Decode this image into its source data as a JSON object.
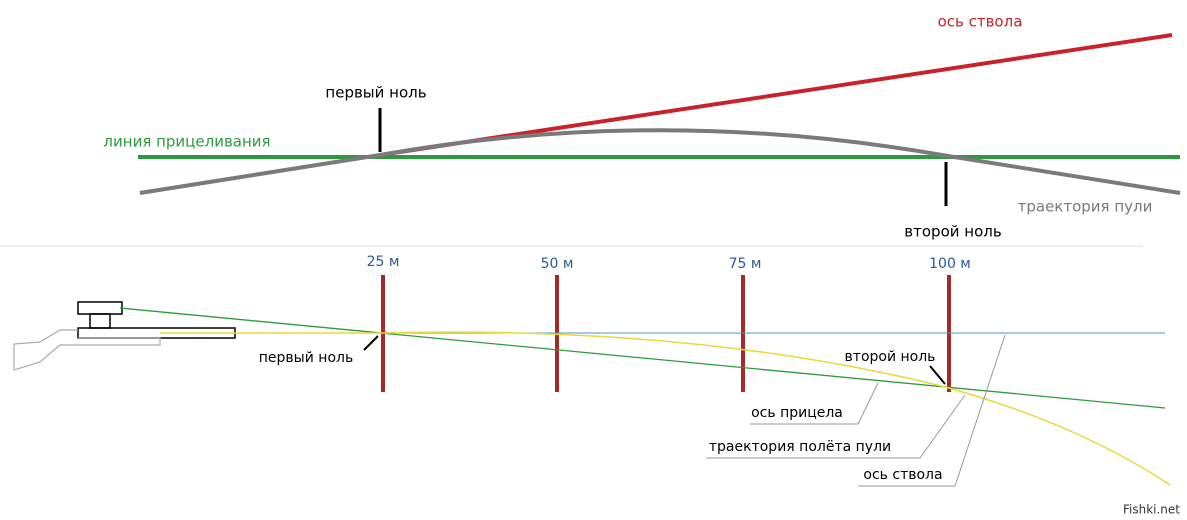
{
  "top": {
    "barrel_axis": "ось ствола",
    "first_zero": "первый ноль",
    "sight_line": "линия прицеливания",
    "trajectory": "траектория пули",
    "second_zero": "второй ноль"
  },
  "bottom": {
    "distances": [
      "25 м",
      "50 м",
      "75 м",
      "100 м"
    ],
    "first_zero": "первый ноль",
    "second_zero": "второй ноль",
    "sight_axis": "ось прицела",
    "trajectory": "траектория полёта пули",
    "barrel_axis": "ось ствола"
  },
  "watermark": "Fishki.net"
}
